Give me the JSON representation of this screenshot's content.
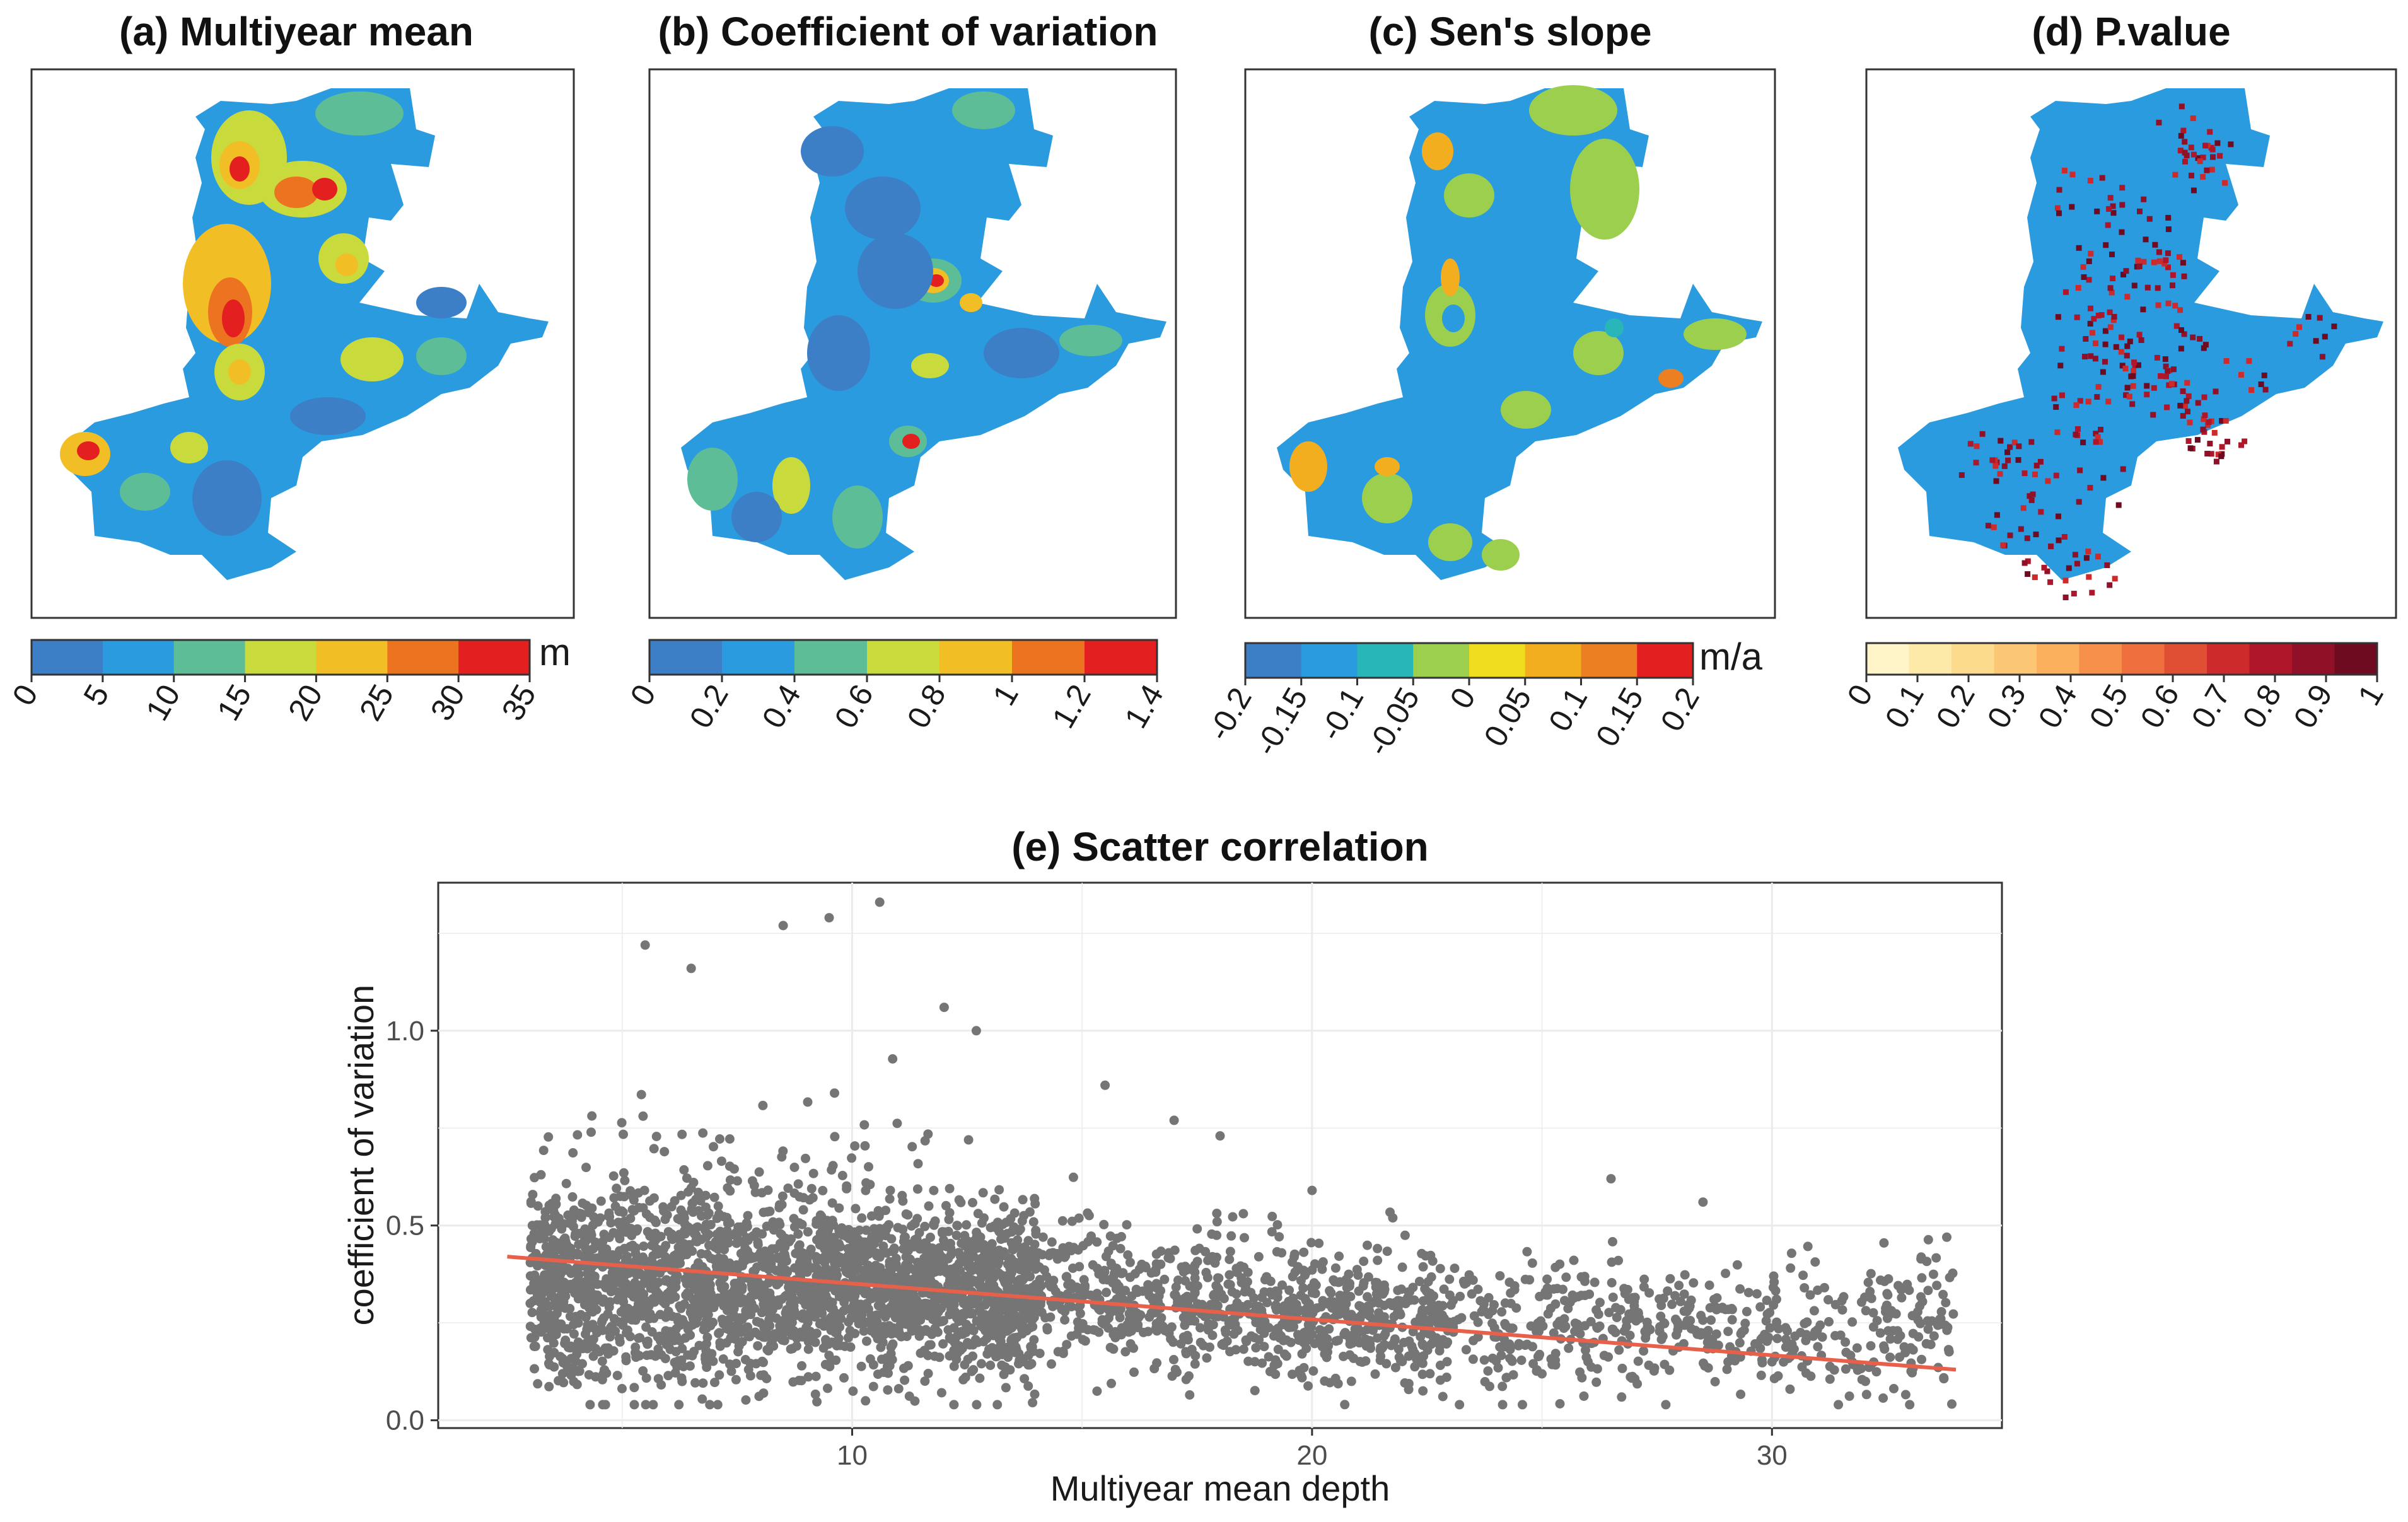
{
  "figure": {
    "maps": [
      {
        "title": "(a) Multiyear mean",
        "unit": "m",
        "legend": {
          "ticks": [
            "0",
            "5",
            "10",
            "15",
            "20",
            "25",
            "30",
            "35"
          ],
          "colors": [
            "#3c7fc6",
            "#2b9be0",
            "#5dbd96",
            "#c9db3c",
            "#f1bf25",
            "#ec7420",
            "#e41f1f"
          ]
        }
      },
      {
        "title": "(b) Coefficient of variation",
        "unit": "",
        "legend": {
          "ticks": [
            "0",
            "0.2",
            "0.4",
            "0.6",
            "0.8",
            "1",
            "1.2",
            "1.4"
          ],
          "colors": [
            "#3c7fc6",
            "#2b9be0",
            "#5dbd96",
            "#c9db3c",
            "#f1bf25",
            "#ec7420",
            "#e41f1f"
          ]
        }
      },
      {
        "title": "(c) Sen's slope",
        "unit": "m/a",
        "legend": {
          "ticks": [
            "-0.2",
            "-0.15",
            "-0.1",
            "-0.05",
            "0",
            "0.05",
            "0.1",
            "0.15",
            "0.2"
          ],
          "colors": [
            "#3c7fc6",
            "#2b9be0",
            "#29b6b9",
            "#9ccf4e",
            "#f0dc1e",
            "#f3ae1f",
            "#ec7f22",
            "#e41f1f"
          ]
        }
      },
      {
        "title": "(d) P.value",
        "unit": "",
        "legend": {
          "ticks": [
            "0",
            "0.1",
            "0.2",
            "0.3",
            "0.4",
            "0.5",
            "0.6",
            "0.7",
            "0.8",
            "0.9",
            "1"
          ],
          "colors": [
            "#fff5c8",
            "#fde9a8",
            "#fcdb8c",
            "#fcc774",
            "#fbb05d",
            "#f7904b",
            "#f06f3f",
            "#e04e33",
            "#cc2a2b",
            "#b0162a",
            "#901027",
            "#6e0b20"
          ]
        }
      }
    ],
    "colors": {
      "axis_text": "#4d4d4d",
      "grid": "#ebebeb",
      "points": "#757575",
      "fit_line": "#e8604a"
    }
  },
  "chart_data": [
    {
      "type": "scatter",
      "title": "(e) Scatter correlation",
      "xlabel": "Multiyear mean depth",
      "ylabel": "coefficient of variation",
      "xlim": [
        1,
        35
      ],
      "ylim": [
        -0.02,
        1.38
      ],
      "x_ticks": [
        10,
        20,
        30
      ],
      "y_ticks": [
        0.0,
        0.5,
        1.0
      ],
      "y_tick_labels": [
        "0.0",
        "0.5",
        "1.0"
      ],
      "grid": true,
      "point_count": 4000,
      "trend_line": {
        "x": [
          2.5,
          34
        ],
        "y": [
          0.42,
          0.13
        ]
      },
      "sample_points": [
        {
          "x": 5.5,
          "y": 1.22
        },
        {
          "x": 6.5,
          "y": 1.16
        },
        {
          "x": 8.5,
          "y": 1.27
        },
        {
          "x": 9.5,
          "y": 1.29
        },
        {
          "x": 10.6,
          "y": 1.33
        },
        {
          "x": 12.0,
          "y": 1.06
        },
        {
          "x": 12.7,
          "y": 1.0
        },
        {
          "x": 15.5,
          "y": 0.86
        },
        {
          "x": 17.0,
          "y": 0.77
        },
        {
          "x": 18.0,
          "y": 0.73
        },
        {
          "x": 20.0,
          "y": 0.59
        },
        {
          "x": 26.5,
          "y": 0.62
        },
        {
          "x": 28.5,
          "y": 0.56
        },
        {
          "x": 33.8,
          "y": 0.47
        },
        {
          "x": 10.0,
          "y": 0.35
        },
        {
          "x": 20.0,
          "y": 0.22
        },
        {
          "x": 30.0,
          "y": 0.15
        },
        {
          "x": 3.0,
          "y": 0.3
        }
      ]
    }
  ]
}
